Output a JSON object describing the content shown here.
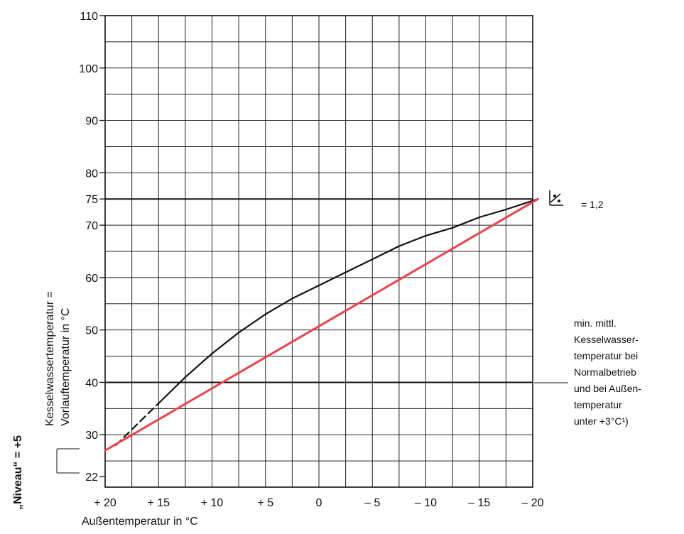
{
  "chart_data": {
    "type": "line",
    "title": "",
    "xlabel": "Außentemperatur in °C",
    "ylabel_line1": "Kesselwassertemperatur =",
    "ylabel_line2": "Vorlauftemperatur in °C",
    "level_label": "„Niveau“ = +5",
    "xlim": [
      20,
      -20
    ],
    "ylim": [
      20,
      110
    ],
    "x_ticks": [
      {
        "value": 20,
        "label": "+ 20"
      },
      {
        "value": 15,
        "label": "+ 15"
      },
      {
        "value": 10,
        "label": "+ 10"
      },
      {
        "value": 5,
        "label": "+ 5"
      },
      {
        "value": 0,
        "label": "0"
      },
      {
        "value": -5,
        "label": "– 5"
      },
      {
        "value": -10,
        "label": "– 10"
      },
      {
        "value": -15,
        "label": "– 15"
      },
      {
        "value": -20,
        "label": "– 20"
      }
    ],
    "y_ticks": [
      {
        "value": 110,
        "label": "110"
      },
      {
        "value": 100,
        "label": "100"
      },
      {
        "value": 90,
        "label": "90"
      },
      {
        "value": 80,
        "label": "80"
      },
      {
        "value": 75,
        "label": "75"
      },
      {
        "value": 70,
        "label": "70"
      },
      {
        "value": 60,
        "label": "60"
      },
      {
        "value": 50,
        "label": "50"
      },
      {
        "value": 40,
        "label": "40"
      },
      {
        "value": 30,
        "label": "30"
      },
      {
        "value": 22,
        "label": "22"
      }
    ],
    "grid": true,
    "grid_step_x": 2.5,
    "grid_step_y": 5,
    "emphasized_lines_y": [
      75,
      40
    ],
    "series": [
      {
        "style": "dashed",
        "color": "#111111",
        "x": [
          19.0,
          17.5,
          16.0,
          15.0
        ],
        "y": [
          28.0,
          31.0,
          34.0,
          36.0
        ]
      },
      {
        "style": "solid",
        "color": "#111111",
        "x": [
          15.0,
          12.5,
          10.0,
          7.5,
          5.0,
          2.5,
          0.0,
          -2.5,
          -5.0,
          -7.5,
          -10.0,
          -12.5,
          -15.0,
          -17.5,
          -20.5
        ],
        "y": [
          36.0,
          41.0,
          45.5,
          49.5,
          53.0,
          56.0,
          58.5,
          61.0,
          63.5,
          66.0,
          68.0,
          69.5,
          71.5,
          73.0,
          75.0
        ]
      },
      {
        "style": "solid",
        "color": "#e8444a",
        "x": [
          20.0,
          -20.5
        ],
        "y": [
          27.0,
          75.0
        ]
      }
    ],
    "annotations": {
      "slope_value": "= 1,2",
      "min_text_lines": [
        "min. mittl.",
        "Kesselwasser-",
        "temperatur bei",
        "Normalbetrieb",
        "und bei Außen-",
        "temperatur",
        "unter +3°C¹)"
      ]
    }
  }
}
